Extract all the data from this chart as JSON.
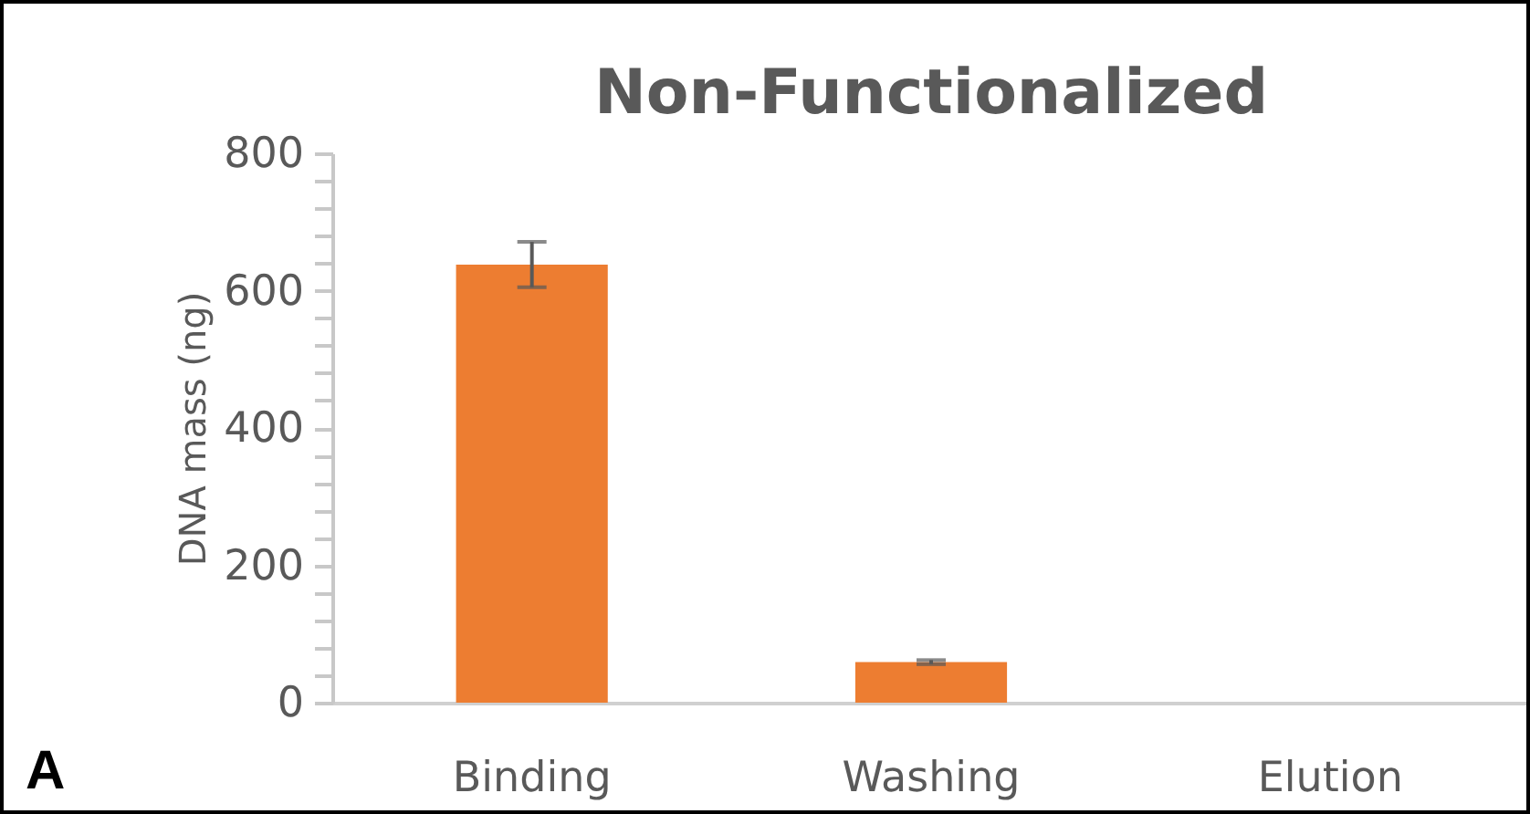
{
  "chart_data": {
    "type": "bar",
    "title": "Non-Functionalized",
    "ylabel": "DNA mass (ng)",
    "categories": [
      "Binding",
      "Washing",
      "Elution"
    ],
    "values": [
      638,
      59,
      0
    ],
    "errors": [
      33,
      3,
      null
    ],
    "color": "#ed7d31",
    "ylim": [
      0,
      800
    ],
    "yticks": [
      0,
      {
        "value": 40,
        "label": null
      },
      {
        "value": 80,
        "label": null
      },
      {
        "value": 120,
        "label": null
      },
      {
        "value": 160,
        "label": null
      },
      200,
      {
        "value": 240,
        "label": null
      },
      {
        "value": 280,
        "label": null
      },
      {
        "value": 320,
        "label": null
      },
      {
        "value": 360,
        "label": null
      },
      400,
      {
        "value": 440,
        "label": null
      },
      {
        "value": 480,
        "label": null
      },
      {
        "value": 520,
        "label": null
      },
      {
        "value": 560,
        "label": null
      },
      600,
      {
        "value": 640,
        "label": null
      },
      {
        "value": 680,
        "label": null
      },
      {
        "value": 720,
        "label": null
      },
      {
        "value": 760,
        "label": null
      },
      800
    ],
    "grid": false,
    "annotations": [
      "A"
    ]
  }
}
